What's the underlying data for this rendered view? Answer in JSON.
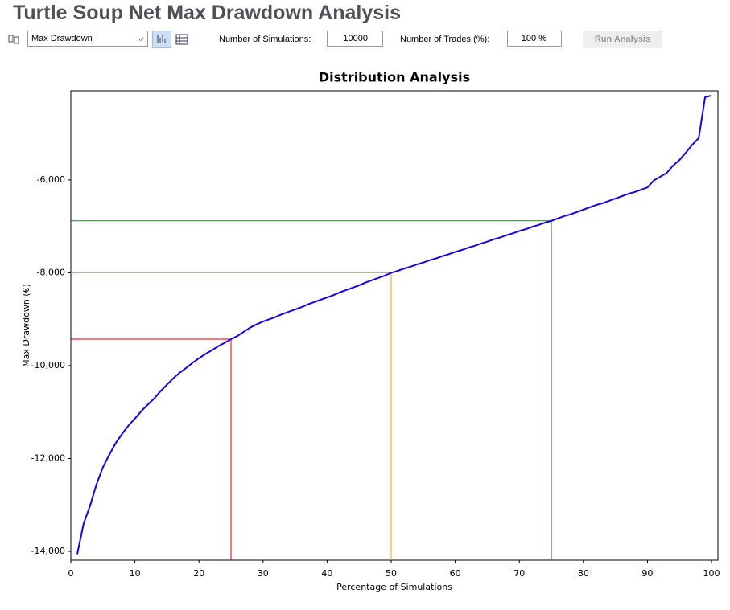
{
  "header": {
    "title": "Turtle Soup Net Max Drawdown Analysis"
  },
  "toolbar": {
    "metric": "Max Drawdown",
    "simulations_label": "Number of Simulations:",
    "simulations_value": 10000,
    "trades_label": "Number of Trades (%):",
    "trades_value": "100 %",
    "run_button": "Run Analysis"
  },
  "chart_data": {
    "type": "line",
    "title": "Distribution Analysis",
    "x_label": "Percentage of Simulations",
    "y_label": "Max Drawdown (€)",
    "x": [
      1,
      2,
      3,
      4,
      5,
      6,
      7,
      8,
      9,
      10,
      11,
      12,
      13,
      14,
      15,
      16,
      17,
      18,
      19,
      20,
      21,
      22,
      23,
      24,
      25,
      26,
      27,
      28,
      29,
      30,
      31,
      32,
      33,
      34,
      35,
      36,
      37,
      38,
      39,
      40,
      41,
      42,
      43,
      44,
      45,
      46,
      47,
      48,
      49,
      50,
      51,
      52,
      53,
      54,
      55,
      56,
      57,
      58,
      59,
      60,
      61,
      62,
      63,
      64,
      65,
      66,
      67,
      68,
      69,
      70,
      71,
      72,
      73,
      74,
      75,
      76,
      77,
      78,
      79,
      80,
      81,
      82,
      83,
      84,
      85,
      86,
      87,
      88,
      89,
      90,
      91,
      92,
      93,
      94,
      95,
      96,
      97,
      98,
      99,
      100
    ],
    "series": [
      {
        "name": "Max Drawdown",
        "color": "#1a00e0",
        "values": [
          -14060,
          -13400,
          -13020,
          -12560,
          -12190,
          -11920,
          -11670,
          -11470,
          -11290,
          -11140,
          -10980,
          -10840,
          -10710,
          -10550,
          -10410,
          -10270,
          -10150,
          -10050,
          -9940,
          -9840,
          -9750,
          -9670,
          -9580,
          -9510,
          -9430,
          -9360,
          -9270,
          -9180,
          -9110,
          -9050,
          -9000,
          -8950,
          -8890,
          -8840,
          -8790,
          -8740,
          -8680,
          -8630,
          -8580,
          -8530,
          -8480,
          -8420,
          -8370,
          -8320,
          -8270,
          -8210,
          -8160,
          -8110,
          -8060,
          -8000,
          -7960,
          -7910,
          -7870,
          -7820,
          -7780,
          -7730,
          -7690,
          -7640,
          -7600,
          -7550,
          -7510,
          -7460,
          -7420,
          -7370,
          -7330,
          -7280,
          -7240,
          -7190,
          -7150,
          -7100,
          -7060,
          -7010,
          -6970,
          -6920,
          -6880,
          -6830,
          -6780,
          -6740,
          -6690,
          -6640,
          -6590,
          -6540,
          -6500,
          -6450,
          -6400,
          -6350,
          -6300,
          -6260,
          -6210,
          -6160,
          -6010,
          -5930,
          -5850,
          -5690,
          -5570,
          -5410,
          -5240,
          -5100,
          -4220,
          -4180
        ]
      }
    ],
    "reference_lines": [
      {
        "x": 25,
        "y": -9430,
        "color": "#cc0000"
      },
      {
        "x": 50,
        "y": -8000,
        "color": "#f0a000"
      },
      {
        "x": 75,
        "y": -6880,
        "color": "#2a7a2a"
      }
    ],
    "xlim": [
      0,
      101
    ],
    "ylim": [
      -14190,
      -4080
    ],
    "xticks": [
      0,
      10,
      20,
      30,
      40,
      50,
      60,
      70,
      80,
      90,
      100
    ],
    "yticks": [
      {
        "value": -14000,
        "label": "-14,000"
      },
      {
        "value": -12000,
        "label": "-12,000"
      },
      {
        "value": -10000,
        "label": "-10,000"
      },
      {
        "value": -8000,
        "label": "-8,000"
      },
      {
        "value": -6000,
        "label": "-6,000"
      }
    ],
    "grid": false
  }
}
